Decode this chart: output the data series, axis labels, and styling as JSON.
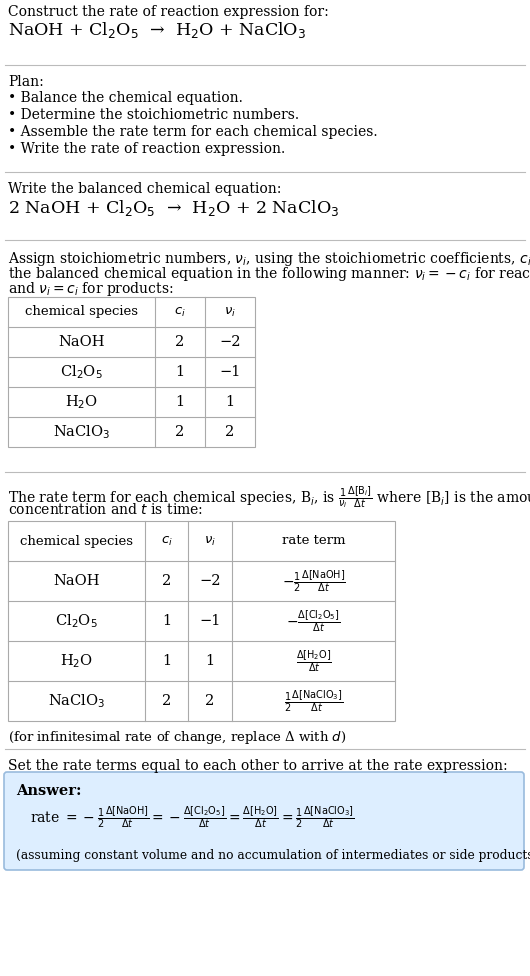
{
  "bg_color": "#ffffff",
  "text_color": "#000000",
  "title_line1": "Construct the rate of reaction expression for:",
  "reaction_unbalanced": "NaOH + Cl$_2$O$_5$  →  H$_2$O + NaClO$_3$",
  "plan_header": "Plan:",
  "plan_items": [
    "• Balance the chemical equation.",
    "• Determine the stoichiometric numbers.",
    "• Assemble the rate term for each chemical species.",
    "• Write the rate of reaction expression."
  ],
  "balanced_header": "Write the balanced chemical equation:",
  "reaction_balanced": "2 NaOH + Cl$_2$O$_5$  →  H$_2$O + 2 NaClO$_3$",
  "stoich_intro_1": "Assign stoichiometric numbers, $\\nu_i$, using the stoichiometric coefficients, $c_i$, from",
  "stoich_intro_2": "the balanced chemical equation in the following manner: $\\nu_i = -c_i$ for reactants",
  "stoich_intro_3": "and $\\nu_i = c_i$ for products:",
  "table1_headers": [
    "chemical species",
    "$c_i$",
    "$\\nu_i$"
  ],
  "table1_data": [
    [
      "NaOH",
      "2",
      "−2"
    ],
    [
      "Cl$_2$O$_5$",
      "1",
      "−1"
    ],
    [
      "H$_2$O",
      "1",
      "1"
    ],
    [
      "NaClO$_3$",
      "2",
      "2"
    ]
  ],
  "rate_intro_1": "The rate term for each chemical species, B$_i$, is $\\frac{1}{\\nu_i}\\frac{\\Delta[\\mathrm{B}_i]}{\\Delta t}$ where [B$_i$] is the amount",
  "rate_intro_2": "concentration and $t$ is time:",
  "table2_headers": [
    "chemical species",
    "$c_i$",
    "$\\nu_i$",
    "rate term"
  ],
  "table2_data": [
    [
      "NaOH",
      "2",
      "−2",
      "$-\\frac{1}{2}\\frac{\\Delta[\\mathrm{NaOH}]}{\\Delta t}$"
    ],
    [
      "Cl$_2$O$_5$",
      "1",
      "−1",
      "$-\\frac{\\Delta[\\mathrm{Cl_2O_5}]}{\\Delta t}$"
    ],
    [
      "H$_2$O",
      "1",
      "1",
      "$\\frac{\\Delta[\\mathrm{H_2O}]}{\\Delta t}$"
    ],
    [
      "NaClO$_3$",
      "2",
      "2",
      "$\\frac{1}{2}\\frac{\\Delta[\\mathrm{NaClO_3}]}{\\Delta t}$"
    ]
  ],
  "infinitesimal_note": "(for infinitesimal rate of change, replace Δ with $d$)",
  "set_equal_text": "Set the rate terms equal to each other to arrive at the rate expression:",
  "answer_box_color": "#ddeeff",
  "answer_border_color": "#99bbdd",
  "answer_header": "Answer:",
  "answer_footnote": "(assuming constant volume and no accumulation of intermediates or side products)"
}
